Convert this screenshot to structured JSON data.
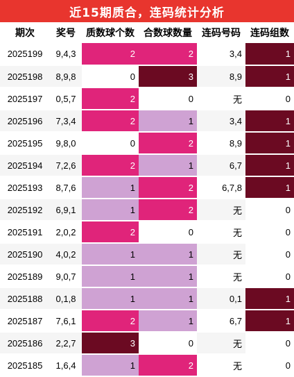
{
  "title": "近15期质合，连码统计分析",
  "headers": [
    "期次",
    "奖号",
    "质数球个数",
    "合数球数量",
    "连码号码",
    "连码组数"
  ],
  "rows": [
    {
      "period": "2025199",
      "prize": "9,4,3",
      "prime": "2",
      "composite": "2",
      "consecutive": "3,4",
      "groups": "1"
    },
    {
      "period": "2025198",
      "prize": "8,9,8",
      "prime": "0",
      "composite": "3",
      "consecutive": "8,9",
      "groups": "1"
    },
    {
      "period": "2025197",
      "prize": "0,5,7",
      "prime": "2",
      "composite": "0",
      "consecutive": "无",
      "groups": "0"
    },
    {
      "period": "2025196",
      "prize": "7,3,4",
      "prime": "2",
      "composite": "1",
      "consecutive": "3,4",
      "groups": "1"
    },
    {
      "period": "2025195",
      "prize": "9,8,0",
      "prime": "0",
      "composite": "2",
      "consecutive": "8,9",
      "groups": "1"
    },
    {
      "period": "2025194",
      "prize": "7,2,6",
      "prime": "2",
      "composite": "1",
      "consecutive": "6,7",
      "groups": "1"
    },
    {
      "period": "2025193",
      "prize": "8,7,6",
      "prime": "1",
      "composite": "2",
      "consecutive": "6,7,8",
      "groups": "1"
    },
    {
      "period": "2025192",
      "prize": "6,9,1",
      "prime": "1",
      "composite": "2",
      "consecutive": "无",
      "groups": "0"
    },
    {
      "period": "2025191",
      "prize": "2,0,2",
      "prime": "2",
      "composite": "0",
      "consecutive": "无",
      "groups": "0"
    },
    {
      "period": "2025190",
      "prize": "4,0,2",
      "prime": "1",
      "composite": "1",
      "consecutive": "无",
      "groups": "0"
    },
    {
      "period": "2025189",
      "prize": "9,0,7",
      "prime": "1",
      "composite": "1",
      "consecutive": "无",
      "groups": "0"
    },
    {
      "period": "2025188",
      "prize": "0,1,8",
      "prime": "1",
      "composite": "1",
      "consecutive": "0,1",
      "groups": "1"
    },
    {
      "period": "2025187",
      "prize": "7,6,1",
      "prime": "2",
      "composite": "1",
      "consecutive": "6,7",
      "groups": "1"
    },
    {
      "period": "2025186",
      "prize": "2,2,7",
      "prime": "3",
      "composite": "0",
      "consecutive": "无",
      "groups": "0"
    },
    {
      "period": "2025185",
      "prize": "1,6,4",
      "prime": "1",
      "composite": "2",
      "consecutive": "无",
      "groups": "0"
    }
  ],
  "colors": {
    "title_bg": "#e8352e",
    "count_0": "#ffffff",
    "count_1": "#cfa2d3",
    "count_2": "#e0247a",
    "count_3": "#6b0a22"
  }
}
